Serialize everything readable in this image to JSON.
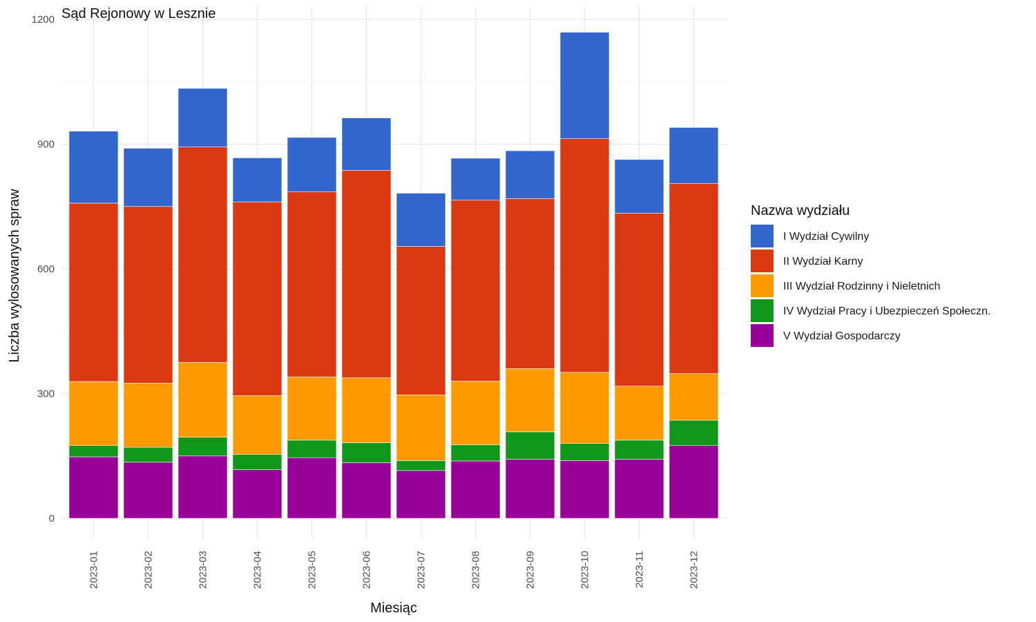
{
  "chart_data": {
    "type": "bar",
    "stacked": true,
    "title": "Sąd Rejonowy w Lesznie",
    "xlabel": "Miesiąc",
    "ylabel": "Liczba wylosowanych spraw",
    "ylim": [
      0,
      1200
    ],
    "yticks": [
      0,
      300,
      600,
      900,
      1200
    ],
    "grid": true,
    "legend_title": "Nazwa wydziału",
    "legend_position": "right",
    "categories": [
      "2023-01",
      "2023-02",
      "2023-03",
      "2023-04",
      "2023-05",
      "2023-06",
      "2023-07",
      "2023-08",
      "2023-09",
      "2023-10",
      "2023-11",
      "2023-12"
    ],
    "series": [
      {
        "name": "V Wydział Gospodarczy",
        "color": "#990099",
        "values": [
          148,
          135,
          150,
          117,
          146,
          134,
          115,
          138,
          142,
          139,
          142,
          175
        ]
      },
      {
        "name": "IV Wydział Pracy i Ubezpieczeń Społeczn.",
        "color": "#109618",
        "values": [
          27,
          36,
          45,
          37,
          42,
          48,
          24,
          39,
          66,
          41,
          46,
          61
        ]
      },
      {
        "name": "III Wydział Rodzinny i Nieletnich",
        "color": "#FF9900",
        "values": [
          154,
          154,
          180,
          141,
          152,
          156,
          158,
          153,
          152,
          171,
          130,
          112
        ]
      },
      {
        "name": "II Wydział Karny",
        "color": "#DC3912",
        "values": [
          429,
          425,
          518,
          466,
          445,
          499,
          357,
          435,
          409,
          562,
          416,
          457
        ]
      },
      {
        "name": "I Wydział Cywilny",
        "color": "#3366CC",
        "values": [
          173,
          140,
          141,
          106,
          131,
          126,
          128,
          101,
          115,
          256,
          129,
          135
        ]
      }
    ],
    "legend_order": [
      "I Wydział Cywilny",
      "II Wydział Karny",
      "III Wydział Rodzinny i Nieletnich",
      "IV Wydział Pracy i Ubezpieczeń Społeczn.",
      "V Wydział Gospodarczy"
    ]
  }
}
